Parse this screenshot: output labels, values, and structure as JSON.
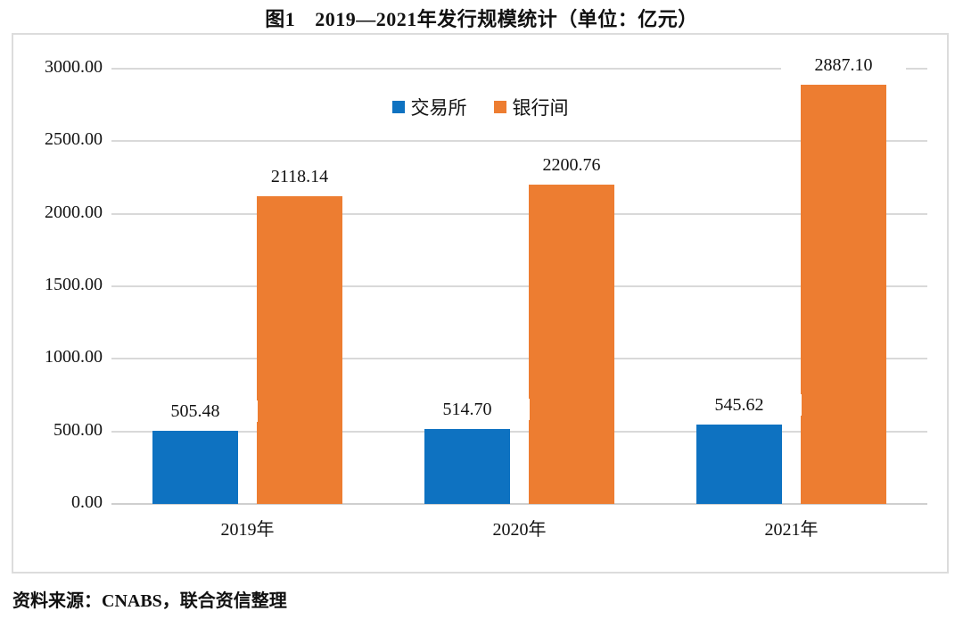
{
  "title": {
    "prefix": "图1",
    "main": "2019—2021年发行规模统计（单位：亿元）"
  },
  "source_note": "资料来源：CNABS，联合资信整理",
  "chart_data": {
    "type": "bar",
    "categories": [
      "2019年",
      "2020年",
      "2021年"
    ],
    "series": [
      {
        "name": "交易所",
        "color": "#0e72c1",
        "values": [
          505.48,
          514.7,
          545.62
        ]
      },
      {
        "name": "银行间",
        "color": "#ed7d31",
        "values": [
          2118.14,
          2200.76,
          2887.1
        ]
      }
    ],
    "value_labels": [
      [
        "505.48",
        "514.70",
        "545.62"
      ],
      [
        "2118.14",
        "2200.76",
        "2887.10"
      ]
    ],
    "ylim": [
      0,
      3000
    ],
    "ytick_step": 500,
    "ytick_labels": [
      "0.00",
      "500.00",
      "1000.00",
      "1500.00",
      "2000.00",
      "2500.00",
      "3000.00"
    ],
    "grid": true,
    "gridline_color": "#d9d9d9",
    "legend_position": "top-center",
    "plot_border_color": "#dcdcdc"
  }
}
